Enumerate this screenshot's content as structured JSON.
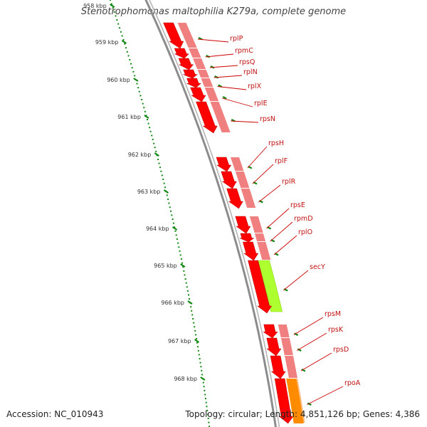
{
  "title": "Stenotrophomonas maltophilia K279a, complete genome",
  "accession_label": "Accession: NC_010943",
  "summary_label": "Topology: circular; Length: 4,851,126 bp; Genes: 4,386",
  "colors": {
    "backbone": "#8c8c8c",
    "ribosomal_protein": "#ff0000",
    "ribosomal_protein_light": "#f08080",
    "secY": "#adff2f",
    "rpoA": "#ff8c00",
    "rpoA_light": "#ffb878",
    "tick": "#118811",
    "label_line": "#cc0000"
  },
  "ruler": [
    {
      "label": "958 kbp"
    },
    {
      "label": "959 kbp"
    },
    {
      "label": "960 kbp"
    },
    {
      "label": "961 kbp"
    },
    {
      "label": "962 kbp"
    },
    {
      "label": "963 kbp"
    },
    {
      "label": "964 kbp"
    },
    {
      "label": "965 kbp"
    },
    {
      "label": "966 kbp"
    },
    {
      "label": "967 kbp"
    },
    {
      "label": "968 kbp"
    }
  ],
  "genes": [
    {
      "name": "rplP",
      "type": "ribosomal_protein"
    },
    {
      "name": "rpmC",
      "type": "ribosomal_protein"
    },
    {
      "name": "rpsQ",
      "type": "ribosomal_protein"
    },
    {
      "name": "rplN",
      "type": "ribosomal_protein"
    },
    {
      "name": "rplX",
      "type": "ribosomal_protein"
    },
    {
      "name": "rplE",
      "type": "ribosomal_protein"
    },
    {
      "name": "rpsN",
      "type": "ribosomal_protein"
    },
    {
      "name": "rpsH",
      "type": "ribosomal_protein"
    },
    {
      "name": "rplF",
      "type": "ribosomal_protein"
    },
    {
      "name": "rplR",
      "type": "ribosomal_protein"
    },
    {
      "name": "rpsE",
      "type": "ribosomal_protein"
    },
    {
      "name": "rpmD",
      "type": "ribosomal_protein"
    },
    {
      "name": "rplO",
      "type": "ribosomal_protein"
    },
    {
      "name": "secY",
      "type": "secY"
    },
    {
      "name": "rpsM",
      "type": "ribosomal_protein"
    },
    {
      "name": "rpsK",
      "type": "ribosomal_protein"
    },
    {
      "name": "rpsD",
      "type": "ribosomal_protein"
    },
    {
      "name": "rpoA",
      "type": "rpoA"
    }
  ]
}
